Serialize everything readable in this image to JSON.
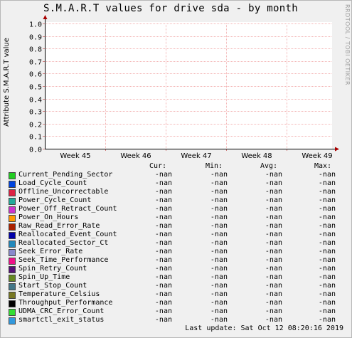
{
  "title": "S.M.A.R.T values for drive sda - by month",
  "watermark": "RRDTOOL / TOBI OETIKER",
  "chart_data": {
    "type": "line",
    "ylabel": "Attribute S.M.A.R.T value",
    "ylim": [
      0,
      1
    ],
    "yticks": [
      "0.0",
      "0.1",
      "0.2",
      "0.3",
      "0.4",
      "0.5",
      "0.6",
      "0.7",
      "0.8",
      "0.9",
      "1.0"
    ],
    "xticks": [
      "Week 45",
      "Week 46",
      "Week 47",
      "Week 48",
      "Week 49"
    ],
    "grid": true,
    "series": []
  },
  "legend": {
    "headers": {
      "cur": "Cur:",
      "min": "Min:",
      "avg": "Avg:",
      "max": "Max:"
    },
    "rows": [
      {
        "name": "Current_Pending_Sector",
        "color": "#22cc22",
        "cur": "-nan",
        "min": "-nan",
        "avg": "-nan",
        "max": "-nan"
      },
      {
        "name": "Load_Cycle_Count",
        "color": "#0044dd",
        "cur": "-nan",
        "min": "-nan",
        "avg": "-nan",
        "max": "-nan"
      },
      {
        "name": "Offline_Uncorrectable",
        "color": "#dd2244",
        "cur": "-nan",
        "min": "-nan",
        "avg": "-nan",
        "max": "-nan"
      },
      {
        "name": "Power_Cycle_Count",
        "color": "#22aa99",
        "cur": "-nan",
        "min": "-nan",
        "avg": "-nan",
        "max": "-nan"
      },
      {
        "name": "Power_Off_Retract_Count",
        "color": "#cc33cc",
        "cur": "-nan",
        "min": "-nan",
        "avg": "-nan",
        "max": "-nan"
      },
      {
        "name": "Power_On_Hours",
        "color": "#ff9900",
        "cur": "-nan",
        "min": "-nan",
        "avg": "-nan",
        "max": "-nan"
      },
      {
        "name": "Raw_Read_Error_Rate",
        "color": "#aa2200",
        "cur": "-nan",
        "min": "-nan",
        "avg": "-nan",
        "max": "-nan"
      },
      {
        "name": "Reallocated_Event_Count",
        "color": "#0000aa",
        "cur": "-nan",
        "min": "-nan",
        "avg": "-nan",
        "max": "-nan"
      },
      {
        "name": "Reallocated_Sector_Ct",
        "color": "#2288bb",
        "cur": "-nan",
        "min": "-nan",
        "avg": "-nan",
        "max": "-nan"
      },
      {
        "name": "Seek_Error_Rate",
        "color": "#8888cc",
        "cur": "-nan",
        "min": "-nan",
        "avg": "-nan",
        "max": "-nan"
      },
      {
        "name": "Seek_Time_Performance",
        "color": "#ee1188",
        "cur": "-nan",
        "min": "-nan",
        "avg": "-nan",
        "max": "-nan"
      },
      {
        "name": "Spin_Retry_Count",
        "color": "#551177",
        "cur": "-nan",
        "min": "-nan",
        "avg": "-nan",
        "max": "-nan"
      },
      {
        "name": "Spin_Up_Time",
        "color": "#668822",
        "cur": "-nan",
        "min": "-nan",
        "avg": "-nan",
        "max": "-nan"
      },
      {
        "name": "Start_Stop_Count",
        "color": "#447788",
        "cur": "-nan",
        "min": "-nan",
        "avg": "-nan",
        "max": "-nan"
      },
      {
        "name": "Temperature_Celsius",
        "color": "#777722",
        "cur": "-nan",
        "min": "-nan",
        "avg": "-nan",
        "max": "-nan"
      },
      {
        "name": "Throughput_Performance",
        "color": "#000000",
        "cur": "-nan",
        "min": "-nan",
        "avg": "-nan",
        "max": "-nan"
      },
      {
        "name": "UDMA_CRC_Error_Count",
        "color": "#33dd33",
        "cur": "-nan",
        "min": "-nan",
        "avg": "-nan",
        "max": "-nan"
      },
      {
        "name": "smartctl_exit_status",
        "color": "#3399dd",
        "cur": "-nan",
        "min": "-nan",
        "avg": "-nan",
        "max": "-nan"
      }
    ]
  },
  "last_update": "Last update:  Sat Oct 12 08:20:16 2019"
}
